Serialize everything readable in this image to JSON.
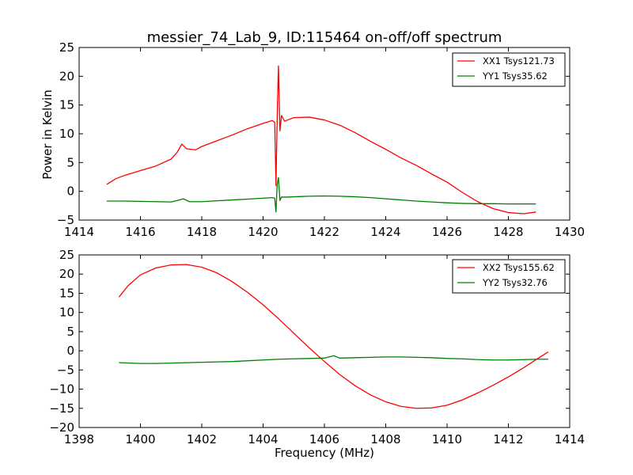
{
  "chart_data": [
    {
      "type": "line",
      "title": "messier_74_Lab_9, ID:115464 on-off/off spectrum",
      "xlabel": "",
      "ylabel": "Power in Kelvin",
      "xlim": [
        1414,
        1430
      ],
      "ylim": [
        -5,
        25
      ],
      "xticks": [
        "1414",
        "1416",
        "1418",
        "1420",
        "1422",
        "1424",
        "1426",
        "1428",
        "1430"
      ],
      "yticks": [
        "-5",
        "0",
        "5",
        "10",
        "15",
        "20",
        "25"
      ],
      "grid": false,
      "legend": "top-right",
      "series": [
        {
          "name": "XX1 Tsys121.73",
          "color": "#ff0000",
          "x": [
            1414.9,
            1415.2,
            1415.5,
            1416.0,
            1416.5,
            1417.0,
            1417.2,
            1417.35,
            1417.5,
            1417.8,
            1418.0,
            1418.5,
            1419.0,
            1419.5,
            1420.0,
            1420.3,
            1420.38,
            1420.42,
            1420.46,
            1420.5,
            1420.55,
            1420.6,
            1420.7,
            1420.8,
            1421.0,
            1421.5,
            1422.0,
            1422.5,
            1423.0,
            1423.5,
            1424.0,
            1424.5,
            1425.0,
            1425.5,
            1426.0,
            1426.5,
            1427.0,
            1427.5,
            1428.0,
            1428.5,
            1428.9
          ],
          "y": [
            1.2,
            2.2,
            2.8,
            3.6,
            4.4,
            5.6,
            6.8,
            8.2,
            7.4,
            7.2,
            7.8,
            8.8,
            9.8,
            10.9,
            11.8,
            12.3,
            12.0,
            1.0,
            13.0,
            21.8,
            10.5,
            13.2,
            12.2,
            12.4,
            12.8,
            12.9,
            12.4,
            11.5,
            10.2,
            8.7,
            7.3,
            5.8,
            4.5,
            3.0,
            1.6,
            -0.2,
            -1.8,
            -3.0,
            -3.7,
            -3.9,
            -3.6
          ]
        },
        {
          "name": "YY1 Tsys35.62",
          "color": "#008000",
          "x": [
            1414.9,
            1415.5,
            1416.0,
            1416.5,
            1417.0,
            1417.2,
            1417.4,
            1417.6,
            1418.0,
            1418.5,
            1419.0,
            1419.5,
            1420.0,
            1420.3,
            1420.38,
            1420.42,
            1420.46,
            1420.5,
            1420.55,
            1420.6,
            1420.8,
            1421.0,
            1421.5,
            1422.0,
            1422.5,
            1423.0,
            1423.5,
            1424.0,
            1424.5,
            1425.0,
            1425.5,
            1426.0,
            1426.5,
            1427.0,
            1427.5,
            1428.0,
            1428.5,
            1428.9
          ],
          "y": [
            -1.7,
            -1.7,
            -1.75,
            -1.8,
            -1.85,
            -1.6,
            -1.3,
            -1.8,
            -1.8,
            -1.65,
            -1.5,
            -1.35,
            -1.2,
            -1.1,
            -1.2,
            -3.6,
            1.2,
            2.4,
            -1.6,
            -1.0,
            -1.0,
            -0.95,
            -0.85,
            -0.8,
            -0.85,
            -0.95,
            -1.1,
            -1.3,
            -1.5,
            -1.7,
            -1.85,
            -2.0,
            -2.1,
            -2.15,
            -2.15,
            -2.2,
            -2.2,
            -2.2
          ]
        }
      ]
    },
    {
      "type": "line",
      "title": "",
      "xlabel": "Frequency (MHz)",
      "ylabel": "",
      "xlim": [
        1398,
        1414
      ],
      "ylim": [
        -20,
        25
      ],
      "xticks": [
        "1398",
        "1400",
        "1402",
        "1404",
        "1406",
        "1408",
        "1410",
        "1412",
        "1414"
      ],
      "yticks": [
        "-20",
        "-15",
        "-10",
        "-5",
        "0",
        "5",
        "10",
        "15",
        "20",
        "25"
      ],
      "grid": false,
      "legend": "top-right",
      "series": [
        {
          "name": "XX2 Tsys155.62",
          "color": "#ff0000",
          "x": [
            1399.3,
            1399.6,
            1400.0,
            1400.5,
            1401.0,
            1401.5,
            1402.0,
            1402.5,
            1403.0,
            1403.5,
            1404.0,
            1404.5,
            1405.0,
            1405.5,
            1406.0,
            1406.5,
            1407.0,
            1407.5,
            1408.0,
            1408.5,
            1409.0,
            1409.5,
            1410.0,
            1410.5,
            1411.0,
            1411.5,
            1412.0,
            1412.5,
            1413.0,
            1413.3
          ],
          "y": [
            14.0,
            17.0,
            19.8,
            21.6,
            22.4,
            22.5,
            21.8,
            20.3,
            18.0,
            15.2,
            12.0,
            8.4,
            4.6,
            0.8,
            -2.8,
            -6.2,
            -9.1,
            -11.5,
            -13.3,
            -14.5,
            -15.0,
            -14.9,
            -14.2,
            -12.8,
            -11.0,
            -9.0,
            -6.8,
            -4.4,
            -1.8,
            -0.3
          ]
        },
        {
          "name": "YY2 Tsys32.76",
          "color": "#008000",
          "x": [
            1399.3,
            1400.0,
            1400.5,
            1401.0,
            1401.5,
            1402.0,
            1402.5,
            1403.0,
            1403.5,
            1404.0,
            1404.5,
            1405.0,
            1405.5,
            1406.0,
            1406.3,
            1406.5,
            1407.0,
            1407.5,
            1408.0,
            1408.5,
            1409.0,
            1409.5,
            1410.0,
            1410.5,
            1411.0,
            1411.5,
            1412.0,
            1412.5,
            1413.0,
            1413.3
          ],
          "y": [
            -3.1,
            -3.3,
            -3.3,
            -3.2,
            -3.1,
            -3.0,
            -2.9,
            -2.8,
            -2.6,
            -2.4,
            -2.2,
            -2.1,
            -2.0,
            -1.9,
            -1.3,
            -1.9,
            -1.8,
            -1.7,
            -1.6,
            -1.6,
            -1.7,
            -1.8,
            -2.0,
            -2.1,
            -2.3,
            -2.4,
            -2.4,
            -2.3,
            -2.2,
            -2.2
          ]
        }
      ]
    }
  ]
}
